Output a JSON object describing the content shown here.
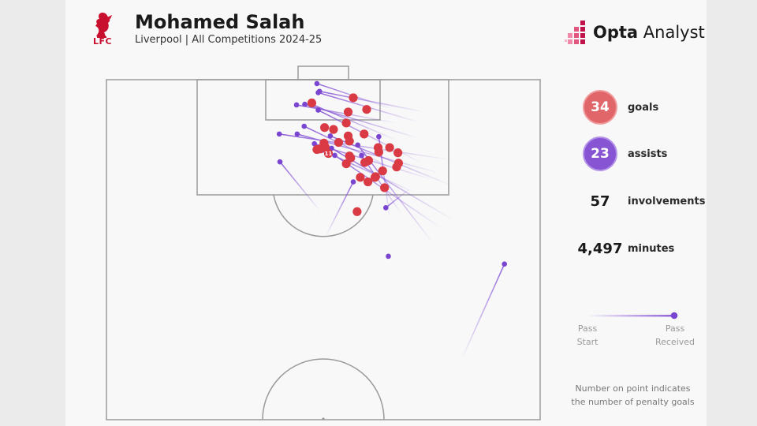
{
  "header": {
    "title": "Mohamed Salah",
    "subtitle": "Liverpool | All Competitions 2024-25",
    "club_badge_text": "LFC",
    "brand_name_bold": "Opta",
    "brand_name_rest": " Analyst"
  },
  "stats": {
    "goals_value": "34",
    "goals_label": "goals",
    "assists_value": "23",
    "assists_label": "assists",
    "involvements_value": "57",
    "involvements_label": "involvements",
    "minutes_value": "4,497",
    "minutes_label": "minutes"
  },
  "legend": {
    "start_label_1": "Pass",
    "start_label_2": "Start",
    "end_label_1": "Pass",
    "end_label_2": "Received"
  },
  "note": {
    "line1": "Number on point indicates",
    "line2": "the number of penalty goals"
  },
  "colors": {
    "goal": "#d93a44",
    "assist": "#7a45d0",
    "assist_line": "#8e60d8",
    "club": "#c8102e",
    "opta_accent": "#c0134a"
  },
  "chart_data": {
    "type": "scatter",
    "coordinate_system": "pitch; x = metres from left touchline (0-68), y = metres from the attacked goal line (0-52.5 shown)",
    "penalty_goal_label": "11",
    "penalty_goal_index": 0,
    "goals": [
      {
        "x": 34.8,
        "y": 11.4
      },
      {
        "x": 32.2,
        "y": 3.6
      },
      {
        "x": 38.7,
        "y": 2.8
      },
      {
        "x": 40.8,
        "y": 4.6
      },
      {
        "x": 37.9,
        "y": 5.0
      },
      {
        "x": 37.6,
        "y": 6.7
      },
      {
        "x": 37.9,
        "y": 8.7
      },
      {
        "x": 34.2,
        "y": 7.4
      },
      {
        "x": 35.6,
        "y": 7.7
      },
      {
        "x": 40.4,
        "y": 8.4
      },
      {
        "x": 34.3,
        "y": 10.4
      },
      {
        "x": 33.0,
        "y": 10.8
      },
      {
        "x": 33.5,
        "y": 10.7
      },
      {
        "x": 34.1,
        "y": 9.8
      },
      {
        "x": 36.4,
        "y": 9.7
      },
      {
        "x": 38.1,
        "y": 11.8
      },
      {
        "x": 38.3,
        "y": 12.1
      },
      {
        "x": 37.6,
        "y": 13.0
      },
      {
        "x": 41.1,
        "y": 12.5
      },
      {
        "x": 42.6,
        "y": 10.5
      },
      {
        "x": 38.1,
        "y": 9.5
      },
      {
        "x": 40.5,
        "y": 12.8
      },
      {
        "x": 42.7,
        "y": 11.2
      },
      {
        "x": 44.4,
        "y": 10.5
      },
      {
        "x": 45.7,
        "y": 11.3
      },
      {
        "x": 45.8,
        "y": 12.9
      },
      {
        "x": 43.3,
        "y": 14.1
      },
      {
        "x": 45.5,
        "y": 13.5
      },
      {
        "x": 42.2,
        "y": 15.0
      },
      {
        "x": 39.8,
        "y": 15.1
      },
      {
        "x": 41.0,
        "y": 15.8
      },
      {
        "x": 42.1,
        "y": 15.1
      },
      {
        "x": 43.6,
        "y": 16.7
      },
      {
        "x": 39.3,
        "y": 20.4
      }
    ],
    "assists": [
      {
        "start": {
          "x": 33.0,
          "y": 0.6
        },
        "end": {
          "x": 44.8,
          "y": 4.5
        }
      },
      {
        "start": {
          "x": 33.4,
          "y": 1.8
        },
        "end": {
          "x": 49.9,
          "y": 5.0
        }
      },
      {
        "start": {
          "x": 33.2,
          "y": 2.0
        },
        "end": {
          "x": 49.1,
          "y": 6.6
        }
      },
      {
        "start": {
          "x": 29.8,
          "y": 3.9
        },
        "end": {
          "x": 45.5,
          "y": 6.7
        }
      },
      {
        "start": {
          "x": 31.1,
          "y": 3.8
        },
        "end": {
          "x": 49.1,
          "y": 9.1
        }
      },
      {
        "start": {
          "x": 32.2,
          "y": 3.8
        },
        "end": {
          "x": 45.6,
          "y": 9.4
        }
      },
      {
        "start": {
          "x": 33.2,
          "y": 4.7
        },
        "end": {
          "x": 49.5,
          "y": 12.9
        }
      },
      {
        "start": {
          "x": 31.0,
          "y": 7.2
        },
        "end": {
          "x": 45.7,
          "y": 14.1
        }
      },
      {
        "start": {
          "x": 27.1,
          "y": 8.4
        },
        "end": {
          "x": 54.1,
          "y": 12.4
        }
      },
      {
        "start": {
          "x": 29.9,
          "y": 8.4
        },
        "end": {
          "x": 52.4,
          "y": 14.5
        }
      },
      {
        "start": {
          "x": 32.6,
          "y": 9.9
        },
        "end": {
          "x": 51.0,
          "y": 15.4
        }
      },
      {
        "start": {
          "x": 33.8,
          "y": 10.9
        },
        "end": {
          "x": 48.4,
          "y": 17.5
        }
      },
      {
        "start": {
          "x": 35.1,
          "y": 8.7
        },
        "end": {
          "x": 54.2,
          "y": 16.4
        }
      },
      {
        "start": {
          "x": 35.3,
          "y": 10.6
        },
        "end": {
          "x": 54.4,
          "y": 21.7
        }
      },
      {
        "start": {
          "x": 35.8,
          "y": 11.7
        },
        "end": {
          "x": 52.4,
          "y": 22.9
        }
      },
      {
        "start": {
          "x": 39.4,
          "y": 10.1
        },
        "end": {
          "x": 51.2,
          "y": 25.3
        }
      },
      {
        "start": {
          "x": 40.0,
          "y": 11.7
        },
        "end": {
          "x": 46.2,
          "y": 20.7
        }
      },
      {
        "start": {
          "x": 42.7,
          "y": 8.8
        },
        "end": {
          "x": 44.4,
          "y": 21.4
        }
      },
      {
        "start": {
          "x": 27.2,
          "y": 12.7
        },
        "end": {
          "x": 33.5,
          "y": 20.3
        }
      },
      {
        "start": {
          "x": 38.7,
          "y": 15.8
        },
        "end": {
          "x": 34.4,
          "y": 24.2
        }
      },
      {
        "start": {
          "x": 43.8,
          "y": 19.8
        },
        "end": {
          "x": 47.5,
          "y": 16.9
        }
      },
      {
        "start": {
          "x": 44.2,
          "y": 27.3
        },
        "end": {
          "x": 44.2,
          "y": 27.3
        }
      },
      {
        "start": {
          "x": 62.4,
          "y": 28.5
        },
        "end": {
          "x": 55.7,
          "y": 43.2
        }
      }
    ]
  }
}
